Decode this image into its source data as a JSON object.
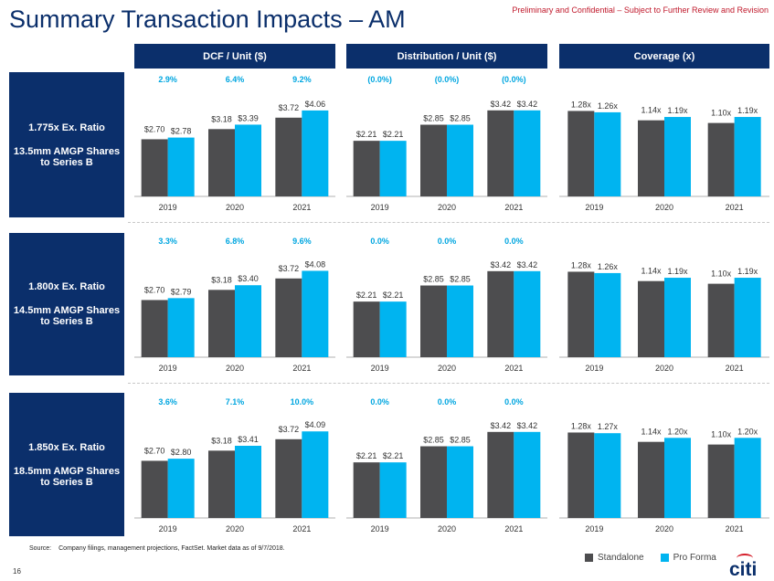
{
  "header": {
    "title": "Summary Transaction Impacts – AM",
    "confidential": "Preliminary and Confidential – Subject to Further Review and Revision"
  },
  "columns": [
    "DCF / Unit ($)",
    "Distribution / Unit ($)",
    "Coverage (x)"
  ],
  "rows": [
    {
      "ratio": "1.775x Ex. Ratio",
      "shares": "13.5mm AMGP Shares to Series B"
    },
    {
      "ratio": "1.800x Ex. Ratio",
      "shares": "14.5mm AMGP Shares to Series B"
    },
    {
      "ratio": "1.850x Ex. Ratio",
      "shares": "18.5mm AMGP Shares to Series B"
    }
  ],
  "footer": {
    "source_label": "Source:",
    "source_text": "Company filings, management projections, FactSet. Market data as of 9/7/2018.",
    "page_number": "16",
    "logo": "citi"
  },
  "legend": {
    "standalone": "Standalone",
    "pro_forma": "Pro Forma"
  },
  "colors": {
    "navy": "#0b2f6b",
    "standalone": "#4d4d4f",
    "pro_forma": "#00b4f0",
    "accent_red": "#c0192b"
  },
  "chart_data": [
    {
      "type": "bar",
      "row": 0,
      "title": "DCF / Unit ($)",
      "categories": [
        "2019",
        "2020",
        "2021"
      ],
      "series": [
        {
          "name": "Standalone",
          "values": [
            2.7,
            3.18,
            3.72
          ],
          "labels": [
            "$2.70",
            "$3.18",
            "$3.72"
          ]
        },
        {
          "name": "Pro Forma",
          "values": [
            2.78,
            3.39,
            4.06
          ],
          "labels": [
            "$2.78",
            "$3.39",
            "$4.06"
          ]
        }
      ],
      "change": [
        "2.9%",
        "6.4%",
        "9.2%"
      ],
      "ylim": [
        0,
        4.1
      ]
    },
    {
      "type": "bar",
      "row": 0,
      "title": "Distribution / Unit ($)",
      "categories": [
        "2019",
        "2020",
        "2021"
      ],
      "series": [
        {
          "name": "Standalone",
          "values": [
            2.21,
            2.85,
            3.42
          ],
          "labels": [
            "$2.21",
            "$2.85",
            "$3.42"
          ]
        },
        {
          "name": "Pro Forma",
          "values": [
            2.21,
            2.85,
            3.42
          ],
          "labels": [
            "$2.21",
            "$2.85",
            "$3.42"
          ]
        }
      ],
      "change": [
        "(0.0%)",
        "(0.0%)",
        "(0.0%)"
      ],
      "ylim": [
        0,
        3.45
      ]
    },
    {
      "type": "bar",
      "row": 0,
      "title": "Coverage (x)",
      "categories": [
        "2019",
        "2020",
        "2021"
      ],
      "series": [
        {
          "name": "Standalone",
          "values": [
            1.28,
            1.14,
            1.1
          ],
          "labels": [
            "1.28x",
            "1.14x",
            "1.10x"
          ]
        },
        {
          "name": "Pro Forma",
          "values": [
            1.26,
            1.19,
            1.19
          ],
          "labels": [
            "1.26x",
            "1.19x",
            "1.19x"
          ]
        }
      ],
      "change": [],
      "ylim": [
        0,
        1.3
      ]
    },
    {
      "type": "bar",
      "row": 1,
      "title": "DCF / Unit ($)",
      "categories": [
        "2019",
        "2020",
        "2021"
      ],
      "series": [
        {
          "name": "Standalone",
          "values": [
            2.7,
            3.18,
            3.72
          ],
          "labels": [
            "$2.70",
            "$3.18",
            "$3.72"
          ]
        },
        {
          "name": "Pro Forma",
          "values": [
            2.79,
            3.4,
            4.08
          ],
          "labels": [
            "$2.79",
            "$3.40",
            "$4.08"
          ]
        }
      ],
      "change": [
        "3.3%",
        "6.8%",
        "9.6%"
      ],
      "ylim": [
        0,
        4.1
      ]
    },
    {
      "type": "bar",
      "row": 1,
      "title": "Distribution / Unit ($)",
      "categories": [
        "2019",
        "2020",
        "2021"
      ],
      "series": [
        {
          "name": "Standalone",
          "values": [
            2.21,
            2.85,
            3.42
          ],
          "labels": [
            "$2.21",
            "$2.85",
            "$3.42"
          ]
        },
        {
          "name": "Pro Forma",
          "values": [
            2.21,
            2.85,
            3.42
          ],
          "labels": [
            "$2.21",
            "$2.85",
            "$3.42"
          ]
        }
      ],
      "change": [
        "0.0%",
        "0.0%",
        "0.0%"
      ],
      "ylim": [
        0,
        3.45
      ]
    },
    {
      "type": "bar",
      "row": 1,
      "title": "Coverage (x)",
      "categories": [
        "2019",
        "2020",
        "2021"
      ],
      "series": [
        {
          "name": "Standalone",
          "values": [
            1.28,
            1.14,
            1.1
          ],
          "labels": [
            "1.28x",
            "1.14x",
            "1.10x"
          ]
        },
        {
          "name": "Pro Forma",
          "values": [
            1.26,
            1.19,
            1.19
          ],
          "labels": [
            "1.26x",
            "1.19x",
            "1.19x"
          ]
        }
      ],
      "change": [],
      "ylim": [
        0,
        1.3
      ]
    },
    {
      "type": "bar",
      "row": 2,
      "title": "DCF / Unit ($)",
      "categories": [
        "2019",
        "2020",
        "2021"
      ],
      "series": [
        {
          "name": "Standalone",
          "values": [
            2.7,
            3.18,
            3.72
          ],
          "labels": [
            "$2.70",
            "$3.18",
            "$3.72"
          ]
        },
        {
          "name": "Pro Forma",
          "values": [
            2.8,
            3.41,
            4.09
          ],
          "labels": [
            "$2.80",
            "$3.41",
            "$4.09"
          ]
        }
      ],
      "change": [
        "3.6%",
        "7.1%",
        "10.0%"
      ],
      "ylim": [
        0,
        4.1
      ]
    },
    {
      "type": "bar",
      "row": 2,
      "title": "Distribution / Unit ($)",
      "categories": [
        "2019",
        "2020",
        "2021"
      ],
      "series": [
        {
          "name": "Standalone",
          "values": [
            2.21,
            2.85,
            3.42
          ],
          "labels": [
            "$2.21",
            "$2.85",
            "$3.42"
          ]
        },
        {
          "name": "Pro Forma",
          "values": [
            2.21,
            2.85,
            3.42
          ],
          "labels": [
            "$2.21",
            "$2.85",
            "$3.42"
          ]
        }
      ],
      "change": [
        "0.0%",
        "0.0%",
        "0.0%"
      ],
      "ylim": [
        0,
        3.45
      ]
    },
    {
      "type": "bar",
      "row": 2,
      "title": "Coverage (x)",
      "categories": [
        "2019",
        "2020",
        "2021"
      ],
      "series": [
        {
          "name": "Standalone",
          "values": [
            1.28,
            1.14,
            1.1
          ],
          "labels": [
            "1.28x",
            "1.14x",
            "1.10x"
          ]
        },
        {
          "name": "Pro Forma",
          "values": [
            1.27,
            1.2,
            1.2
          ],
          "labels": [
            "1.27x",
            "1.20x",
            "1.20x"
          ]
        }
      ],
      "change": [],
      "ylim": [
        0,
        1.3
      ]
    }
  ]
}
